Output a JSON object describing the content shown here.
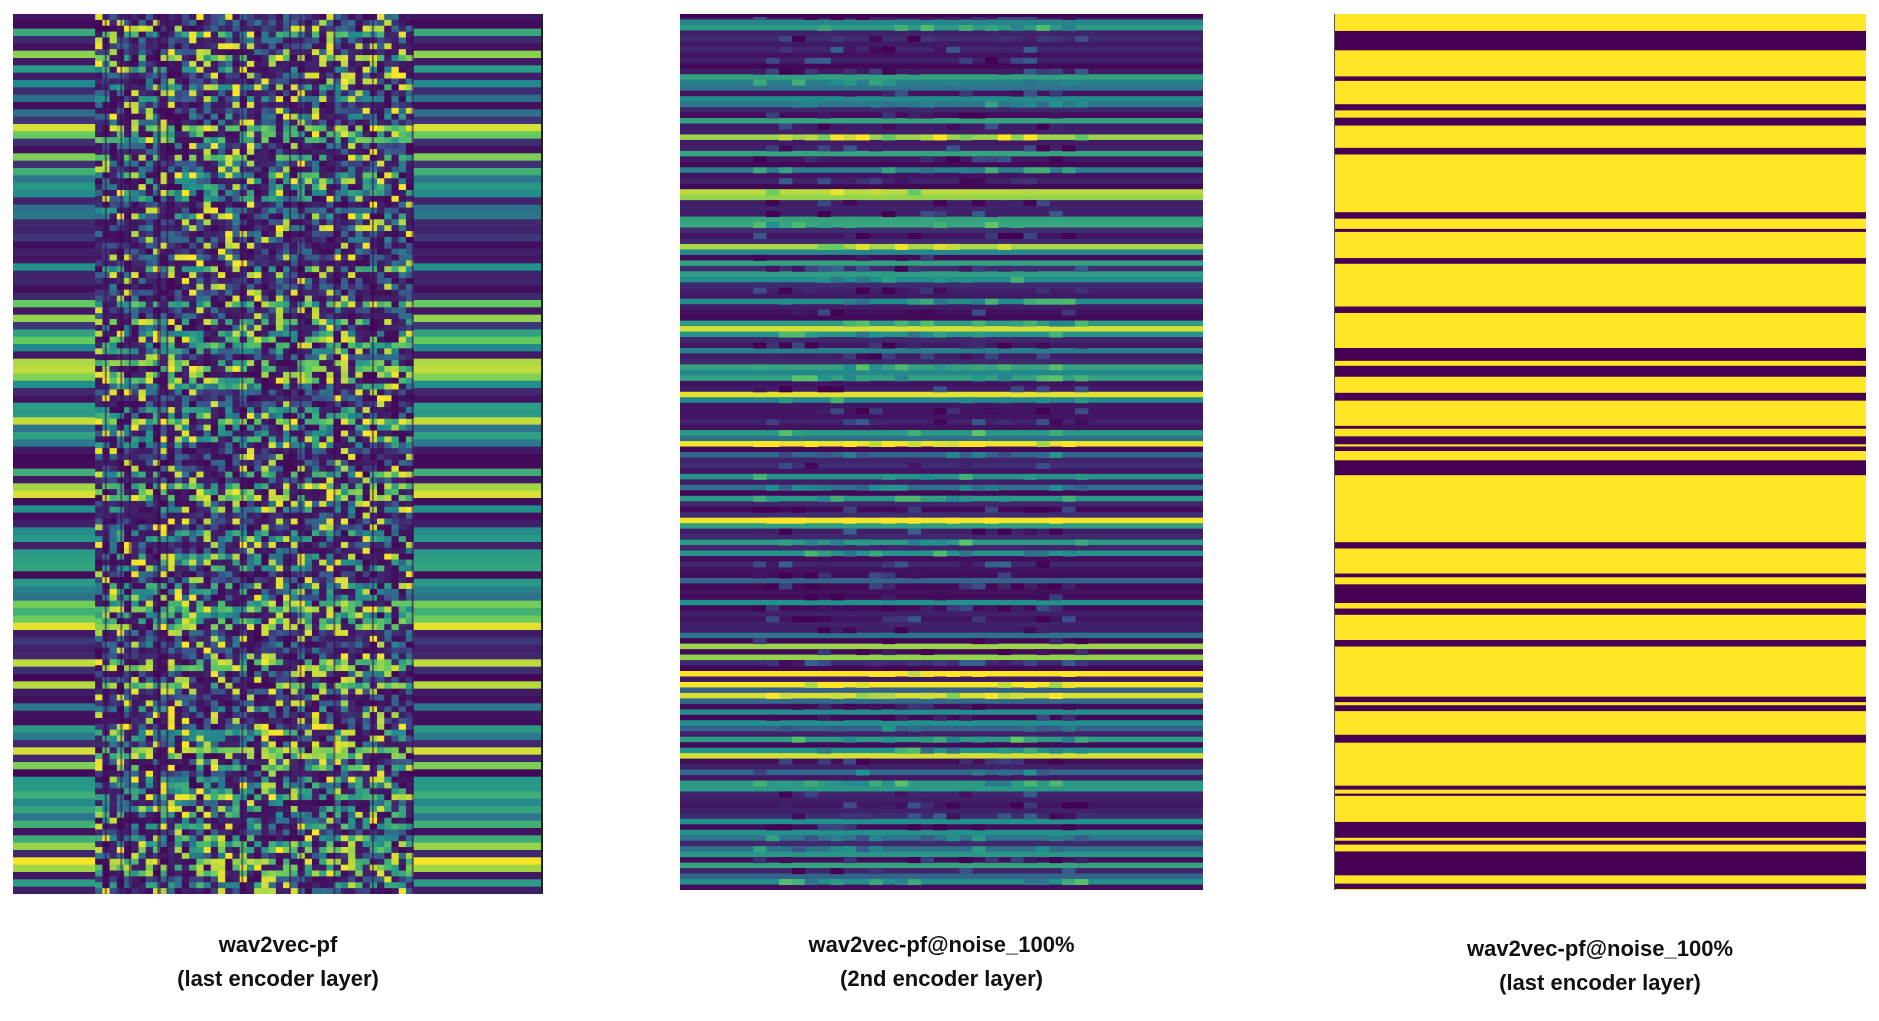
{
  "chart_data": [
    {
      "type": "heatmap",
      "colormap": "viridis",
      "colors": {
        "low": "#440154",
        "mid": "#21918c",
        "high": "#fde725"
      },
      "title_line1": "wav2vec-pf",
      "title_line2": "(last encoder layer)",
      "pattern": "mixed",
      "texture_seed": 11
    },
    {
      "type": "heatmap",
      "colormap": "viridis",
      "colors": {
        "low": "#440154",
        "mid": "#21918c",
        "high": "#fde725"
      },
      "title_line1": "wav2vec-pf@noise_100%",
      "title_line2": "(2nd encoder layer)",
      "pattern": "horizontal-bands",
      "texture_seed": 23
    },
    {
      "type": "heatmap",
      "colormap": "viridis",
      "colors": {
        "low": "#440154",
        "mid": "#21918c",
        "high": "#fde725"
      },
      "title_line1": "wav2vec-pf@noise_100%",
      "title_line2": "(last encoder layer)",
      "pattern": "binary-bands",
      "texture_seed": 37
    }
  ]
}
